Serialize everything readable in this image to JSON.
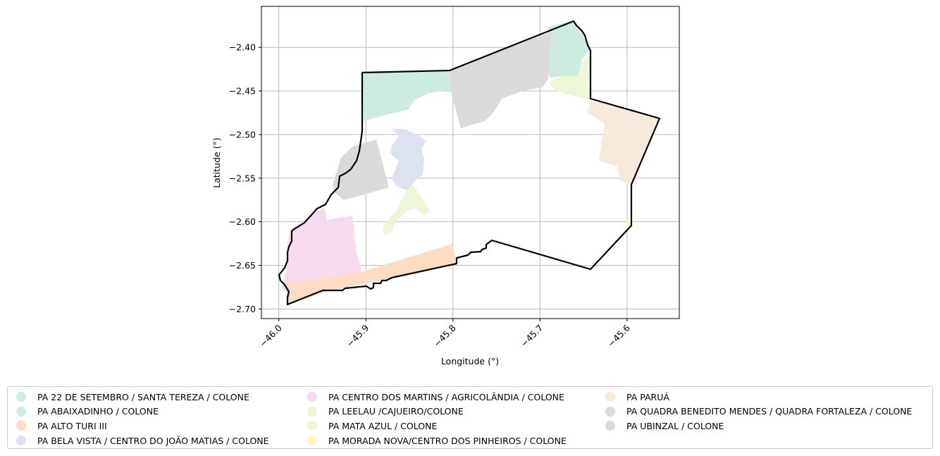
{
  "map": {
    "xlabel": "Longitude (°)",
    "ylabel": "Latitude (°)",
    "x_ticks": [
      -46.0,
      -45.9,
      -45.8,
      -45.7,
      -45.6
    ],
    "x_tick_labels": [
      "−46.0",
      "−45.9",
      "−45.8",
      "−45.7",
      "−45.6"
    ],
    "y_ticks": [
      -2.4,
      -2.45,
      -2.5,
      -2.55,
      -2.6,
      -2.65,
      -2.7
    ],
    "y_tick_labels": [
      "−2.40",
      "−2.45",
      "−2.50",
      "−2.55",
      "−2.60",
      "−2.65",
      "−2.70"
    ],
    "xlim": [
      -46.02,
      -45.54
    ],
    "ylim": [
      -2.711,
      -2.353
    ],
    "grid": true,
    "legend_placement": "bottom"
  },
  "legend": {
    "columns": [
      [
        {
          "label": "PA 22 DE SETEMBRO / SANTA TEREZA / COLONE",
          "color": "#cdebde"
        },
        {
          "label": "PA ABAIXADINHO / COLONE",
          "color": "#cdebde"
        },
        {
          "label": "PA ALTO TURI III",
          "color": "#fcdcc3"
        },
        {
          "label": "PA BELA VISTA / CENTRO DO JOÃO MATIAS / COLONE",
          "color": "#dde2f0"
        }
      ],
      [
        {
          "label": "PA CENTRO DOS MARTINS / AGRICOLÂNDIA / COLONE",
          "color": "#f5dbed"
        },
        {
          "label": "PA LEELAU /CAJUEIRO/COLONE",
          "color": "#edf7d8"
        },
        {
          "label": "PA MATA AZUL / COLONE",
          "color": "#edf7d8"
        },
        {
          "label": "PA MORADA NOVA/CENTRO DOS PINHEIROS / COLONE",
          "color": "#fff4c4"
        }
      ],
      [
        {
          "label": "PA PARUÁ",
          "color": "#f5eadb"
        },
        {
          "label": "PA QUADRA BENEDITO MENDES / QUADRA FORTALEZA / COLONE",
          "color": "#dadada"
        },
        {
          "label": "PA UBINZAL / COLONE",
          "color": "#dadada"
        }
      ]
    ]
  },
  "colors": {
    "boundary": "#000000",
    "grid": "#b0b0b0"
  }
}
